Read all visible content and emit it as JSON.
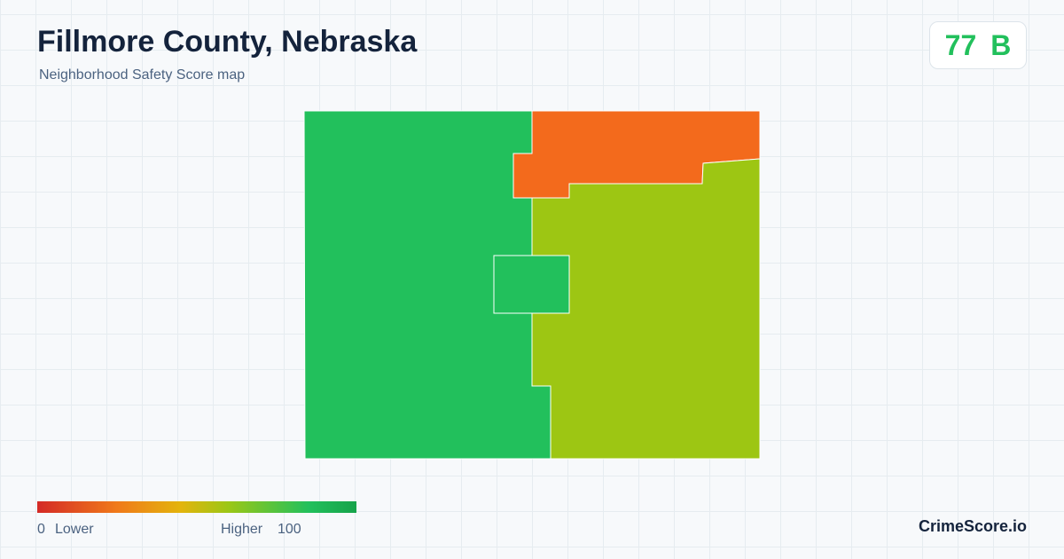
{
  "header": {
    "title": "Fillmore County, Nebraska",
    "subtitle": "Neighborhood Safety Score map"
  },
  "score": {
    "value": 77,
    "grade": "B"
  },
  "legend": {
    "min": 0,
    "min_label": "Lower",
    "max_label": "Higher",
    "max": 100
  },
  "brand": "CrimeScore.io"
}
